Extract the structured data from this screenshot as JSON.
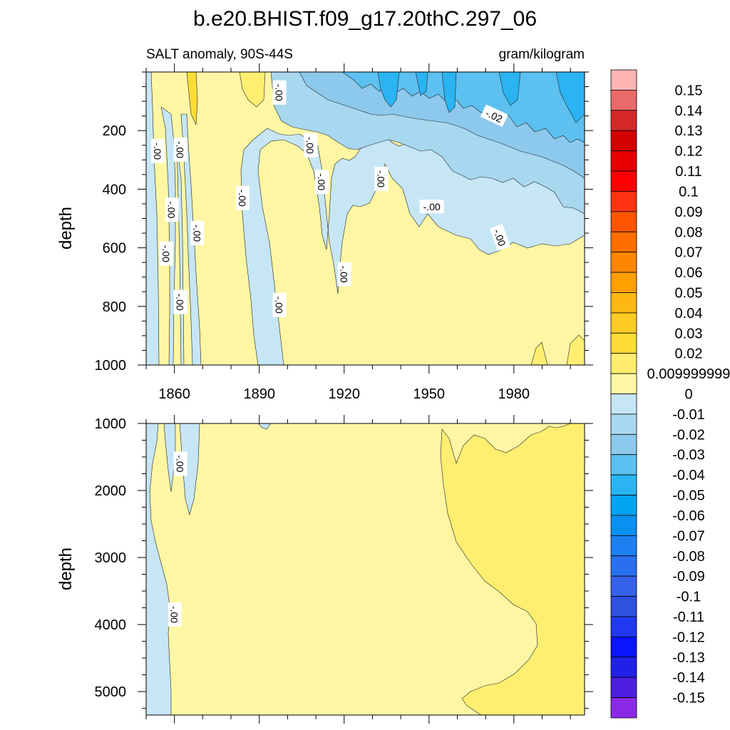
{
  "title": "b.e20.BHIST.f09_g17.20thC.297_06",
  "chart_data": [
    {
      "type": "heatmap",
      "panel": "upper",
      "subtitle_left": "SALT anomaly, 90S-44S",
      "subtitle_right": "gram/kilogram",
      "ylabel": "depth",
      "xlim": [
        1850,
        2005
      ],
      "ylim": [
        0,
        1000
      ],
      "y_inverted": true,
      "x_ticks": [
        1860,
        1890,
        1920,
        1950,
        1980
      ],
      "x_tick_labels": [
        "1860",
        "1890",
        "1920",
        "1950",
        "1980"
      ],
      "y_ticks": [
        200,
        400,
        600,
        800,
        1000
      ],
      "y_tick_labels": [
        "200",
        "400",
        "600",
        "800",
        "1000"
      ],
      "contour_labels": [
        {
          "text": "-.00",
          "x": 1854,
          "y": 270,
          "rot": 90
        },
        {
          "text": "-.00",
          "x": 1862,
          "y": 265,
          "rot": 90
        },
        {
          "text": "-.00",
          "x": 1859,
          "y": 470,
          "rot": 90
        },
        {
          "text": "-.00",
          "x": 1857,
          "y": 620,
          "rot": 90
        },
        {
          "text": "-.00",
          "x": 1868,
          "y": 550,
          "rot": 90
        },
        {
          "text": "-.00",
          "x": 1862,
          "y": 785,
          "rot": 90
        },
        {
          "text": "-.00",
          "x": 1884,
          "y": 430,
          "rot": 90
        },
        {
          "text": "-.00",
          "x": 1897,
          "y": 795,
          "rot": 90
        },
        {
          "text": "-.00",
          "x": 1897,
          "y": 70,
          "rot": 90
        },
        {
          "text": "-.00",
          "x": 1908,
          "y": 250,
          "rot": 90
        },
        {
          "text": "-.00",
          "x": 1912,
          "y": 375,
          "rot": 90
        },
        {
          "text": "-.00",
          "x": 1933,
          "y": 365,
          "rot": 90
        },
        {
          "text": "-.00",
          "x": 1920,
          "y": 690,
          "rot": 90
        },
        {
          "text": "-.00",
          "x": 1951,
          "y": 460,
          "rot": 0
        },
        {
          "text": "-.00",
          "x": 1975,
          "y": 565,
          "rot": 70
        },
        {
          "text": "-.02",
          "x": 1973,
          "y": 150,
          "rot": 25
        }
      ]
    },
    {
      "type": "heatmap",
      "panel": "lower",
      "ylabel": "depth",
      "xlim": [
        1850,
        2005
      ],
      "ylim": [
        1000,
        5350
      ],
      "y_inverted": true,
      "x_ticks": [
        1860,
        1890,
        1920,
        1950,
        1980
      ],
      "y_ticks": [
        1000,
        2000,
        3000,
        4000,
        5000
      ],
      "y_tick_labels": [
        "1000",
        "2000",
        "3000",
        "4000",
        "5000"
      ],
      "contour_labels": [
        {
          "text": "-.00",
          "x": 1862,
          "y": 1600,
          "rot": 90
        },
        {
          "text": "-.00",
          "x": 1860,
          "y": 3850,
          "rot": 90
        }
      ]
    }
  ],
  "colorbar": {
    "labels": [
      "0.15",
      "0.14",
      "0.13",
      "0.12",
      "0.11",
      "0.1",
      "0.09",
      "0.08",
      "0.07",
      "0.06",
      "0.05",
      "0.04",
      "0.03",
      "0.02",
      "0.009999999",
      "0",
      "-0.01",
      "-0.02",
      "-0.03",
      "-0.04",
      "-0.05",
      "-0.06",
      "-0.07",
      "-0.08",
      "-0.09",
      "-0.1",
      "-0.11",
      "-0.12",
      "-0.13",
      "-0.14",
      "-0.15"
    ],
    "colors": [
      "#ffb3b3",
      "#e86a6a",
      "#d62828",
      "#d40000",
      "#e60000",
      "#ff0000",
      "#ff3311",
      "#ff5500",
      "#ff6e00",
      "#ff8600",
      "#ffa000",
      "#ffb812",
      "#ffca22",
      "#ffdc33",
      "#ffec6e",
      "#fff6a4",
      "#c6e6f6",
      "#a8d8f0",
      "#8cc9ec",
      "#5cc0f0",
      "#2ab4f2",
      "#00a4f0",
      "#0a90f0",
      "#1e80f0",
      "#2a70ee",
      "#3560e8",
      "#3050e0",
      "#2038f0",
      "#0a14ff",
      "#2020e8",
      "#4c1ee0",
      "#8a2ae8"
    ]
  },
  "fields": {
    "pale_yellow": "#fff6a4",
    "yellow": "#ffee70",
    "dark_yellow": "#ffdc33",
    "light_blue": "#c6e6f6",
    "blue_2": "#a8d8f0",
    "blue_3": "#8cc9ec",
    "blue_4": "#5cc0f0",
    "blue_5": "#2ab4f2"
  }
}
